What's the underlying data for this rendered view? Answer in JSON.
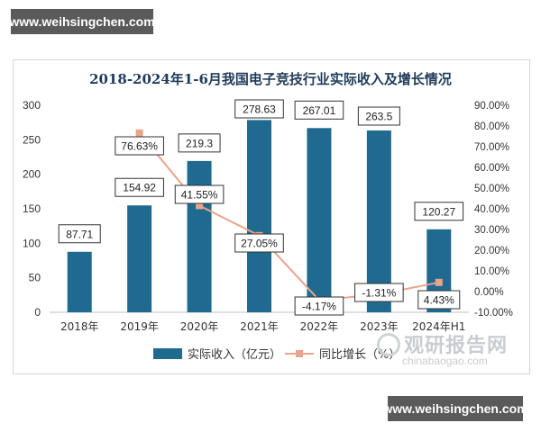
{
  "watermark": {
    "top": "www.weihsingchen.com",
    "bottom": "www.weihsingchen.com"
  },
  "logo": {
    "cn": "观研报告网",
    "en": "chinabaogao.com"
  },
  "chart_data": {
    "type": "bar",
    "title": "2018-2024年1-6月我国电子竞技行业实际收入及增长情况",
    "categories": [
      "2018年",
      "2019年",
      "2020年",
      "2021年",
      "2022年",
      "2023年",
      "2024年H1"
    ],
    "series": [
      {
        "name": "实际收入（亿元）",
        "type": "bar",
        "axis": "left",
        "color": "#1f6a8e",
        "values": [
          87.71,
          154.92,
          219.3,
          278.63,
          267.01,
          263.5,
          120.27
        ],
        "labels": [
          "87.71",
          "154.92",
          "219.3",
          "278.63",
          "267.01",
          "263.5",
          "120.27"
        ]
      },
      {
        "name": "同比增长（%）",
        "type": "line",
        "axis": "right",
        "color": "#e8a48c",
        "values": [
          null,
          76.63,
          41.55,
          27.05,
          -4.17,
          -1.31,
          4.43
        ],
        "labels": [
          "",
          "76.63%",
          "41.55%",
          "27.05%",
          "-4.17%",
          "-1.31%",
          "4.43%"
        ]
      }
    ],
    "left_axis": {
      "min": 0,
      "max": 300,
      "ticks": [
        "0",
        "50",
        "100",
        "150",
        "200",
        "250",
        "300"
      ]
    },
    "right_axis": {
      "min": -10,
      "max": 90,
      "ticks": [
        "-10.00%",
        "0.00%",
        "10.00%",
        "20.00%",
        "30.00%",
        "40.00%",
        "50.00%",
        "60.00%",
        "70.00%",
        "80.00%",
        "90.00%"
      ]
    },
    "grid": false,
    "legend_position": "bottom"
  }
}
